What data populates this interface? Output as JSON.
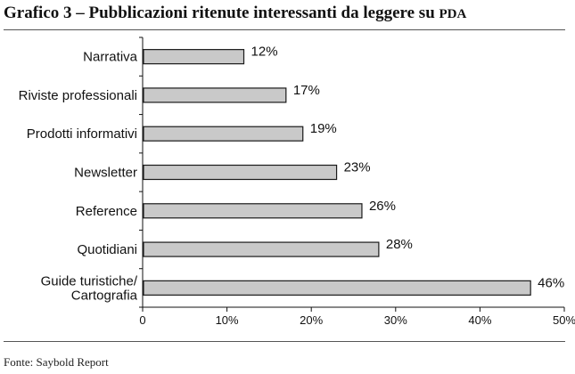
{
  "header": {
    "title_main": "Grafico 3 – Pubblicazioni ritenute interessanti da leggere su ",
    "title_abbr": "PDA"
  },
  "footer": {
    "source": "Fonte: Saybold Report"
  },
  "colors": {
    "bar_fill": "#c9c9c9",
    "bar_stroke": "#1a1a1a",
    "text": "#111111"
  },
  "chart_data": {
    "type": "bar",
    "orientation": "horizontal",
    "title": "Grafico 3 – Pubblicazioni ritenute interessanti da leggere su PDA",
    "categories": [
      [
        "Narrativa"
      ],
      [
        "Riviste professionali"
      ],
      [
        "Prodotti informativi"
      ],
      [
        "Newsletter"
      ],
      [
        "Reference"
      ],
      [
        "Quotidiani"
      ],
      [
        "Guide turistiche/",
        "Cartografia"
      ]
    ],
    "values": [
      12,
      17,
      19,
      23,
      26,
      28,
      46
    ],
    "value_labels": [
      "12%",
      "17%",
      "19%",
      "23%",
      "26%",
      "28%",
      "46%"
    ],
    "xlim": [
      0,
      50
    ],
    "xticks": [
      0,
      10,
      20,
      30,
      40,
      50
    ],
    "xtick_labels": [
      "0",
      "10%",
      "20%",
      "30%",
      "40%",
      "50%"
    ],
    "xlabel": "",
    "ylabel": "",
    "grid": false,
    "legend": "none"
  }
}
